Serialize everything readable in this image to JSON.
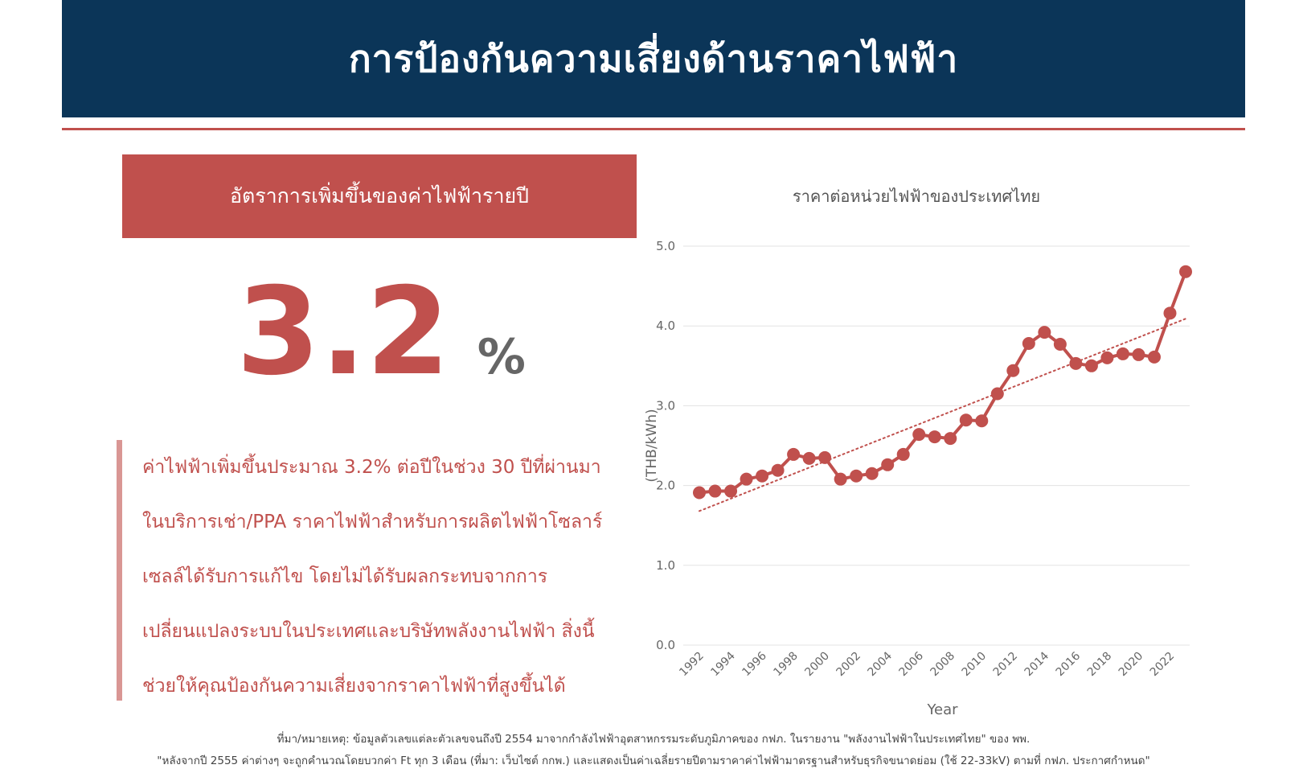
{
  "header": {
    "title": "การป้องกันความเสี่ยงด้านราคาไฟฟ้า"
  },
  "left_panel": {
    "label": "อัตราการเพิ่มขึ้นของค่าไฟฟ้ารายปี",
    "big_number": "3.2",
    "big_unit": "%",
    "paragraph_lines": [
      "ค่าไฟฟ้าเพิ่มขึ้นประมาณ 3.2% ต่อปีในช่วง 30 ปีที่ผ่านมา",
      "ในบริการเช่า/PPA ราคาไฟฟ้าสำหรับการผลิตไฟฟ้าโซลาร์",
      "เซลล์ได้รับการแก้ไข โดยไม่ได้รับผลกระทบจากการ",
      "เปลี่ยนแปลงระบบในประเทศและบริษัทพลังงานไฟฟ้า สิ่งนี้",
      "ช่วยให้คุณป้องกันความเสี่ยงจากราคาไฟฟ้าที่สูงขึ้นได้"
    ]
  },
  "colors": {
    "header_bg": "#0b3558",
    "accent": "#c0504d",
    "accent_light": "#d99694",
    "grid": "#e3e3e3",
    "axis_text": "#666666"
  },
  "chart_data": {
    "type": "line",
    "title": "ราคาต่อหน่วยไฟฟ้าของประเทศไทย",
    "xlabel": "Year",
    "ylabel": "(THB/kWh)",
    "ylim": [
      0,
      5
    ],
    "yticks": [
      "0.0",
      "1.0",
      "2.0",
      "3.0",
      "4.0",
      "5.0"
    ],
    "xticks": [
      "1992",
      "1994",
      "1996",
      "1998",
      "2000",
      "2002",
      "2004",
      "2006",
      "2008",
      "2010",
      "2012",
      "2014",
      "2016",
      "2018",
      "2020",
      "2022"
    ],
    "grid": true,
    "series": [
      {
        "x": [
          1992,
          1993,
          1994,
          1995,
          1996,
          1997,
          1998,
          1999,
          2000,
          2001,
          2002,
          2003,
          2004,
          2005,
          2006,
          2007,
          2008,
          2009,
          2010,
          2011,
          2012,
          2013,
          2014,
          2015,
          2016,
          2017,
          2018,
          2019,
          2020,
          2021,
          2022,
          2023
        ],
        "values": [
          1.91,
          1.93,
          1.93,
          2.08,
          2.12,
          2.19,
          2.39,
          2.34,
          2.35,
          2.08,
          2.12,
          2.15,
          2.26,
          2.39,
          2.64,
          2.61,
          2.59,
          2.82,
          2.81,
          3.15,
          3.44,
          3.78,
          3.92,
          3.77,
          3.53,
          3.5,
          3.6,
          3.65,
          3.64,
          3.61,
          4.16,
          4.68
        ]
      }
    ],
    "trendline": {
      "style": "dotted",
      "start": [
        1992,
        1.68
      ],
      "end": [
        2023,
        4.09
      ]
    }
  },
  "footnotes": {
    "line1": "ที่มา/หมายเหตุ: ข้อมูลตัวเลขแต่ละตัวเลขจนถึงปี 2554 มาจากกำลังไฟฟ้าอุตสาหกรรมระดับภูมิภาคของ กฟภ. ในรายงาน \"พลังงานไฟฟ้าในประเทศไทย\" ของ พพ.",
    "line2": "\"หลังจากปี 2555 ค่าต่างๆ จะถูกคำนวณโดยบวกค่า Ft ทุก 3 เดือน (ที่มา: เว็บไซต์ กกพ.) และแสดงเป็นค่าเฉลี่ยรายปีตามราคาค่าไฟฟ้ามาตรฐานสำหรับธุรกิจขนาดย่อม (ใช้ 22-33kV) ตามที่ กฟภ. ประกาศกำหนด\""
  }
}
